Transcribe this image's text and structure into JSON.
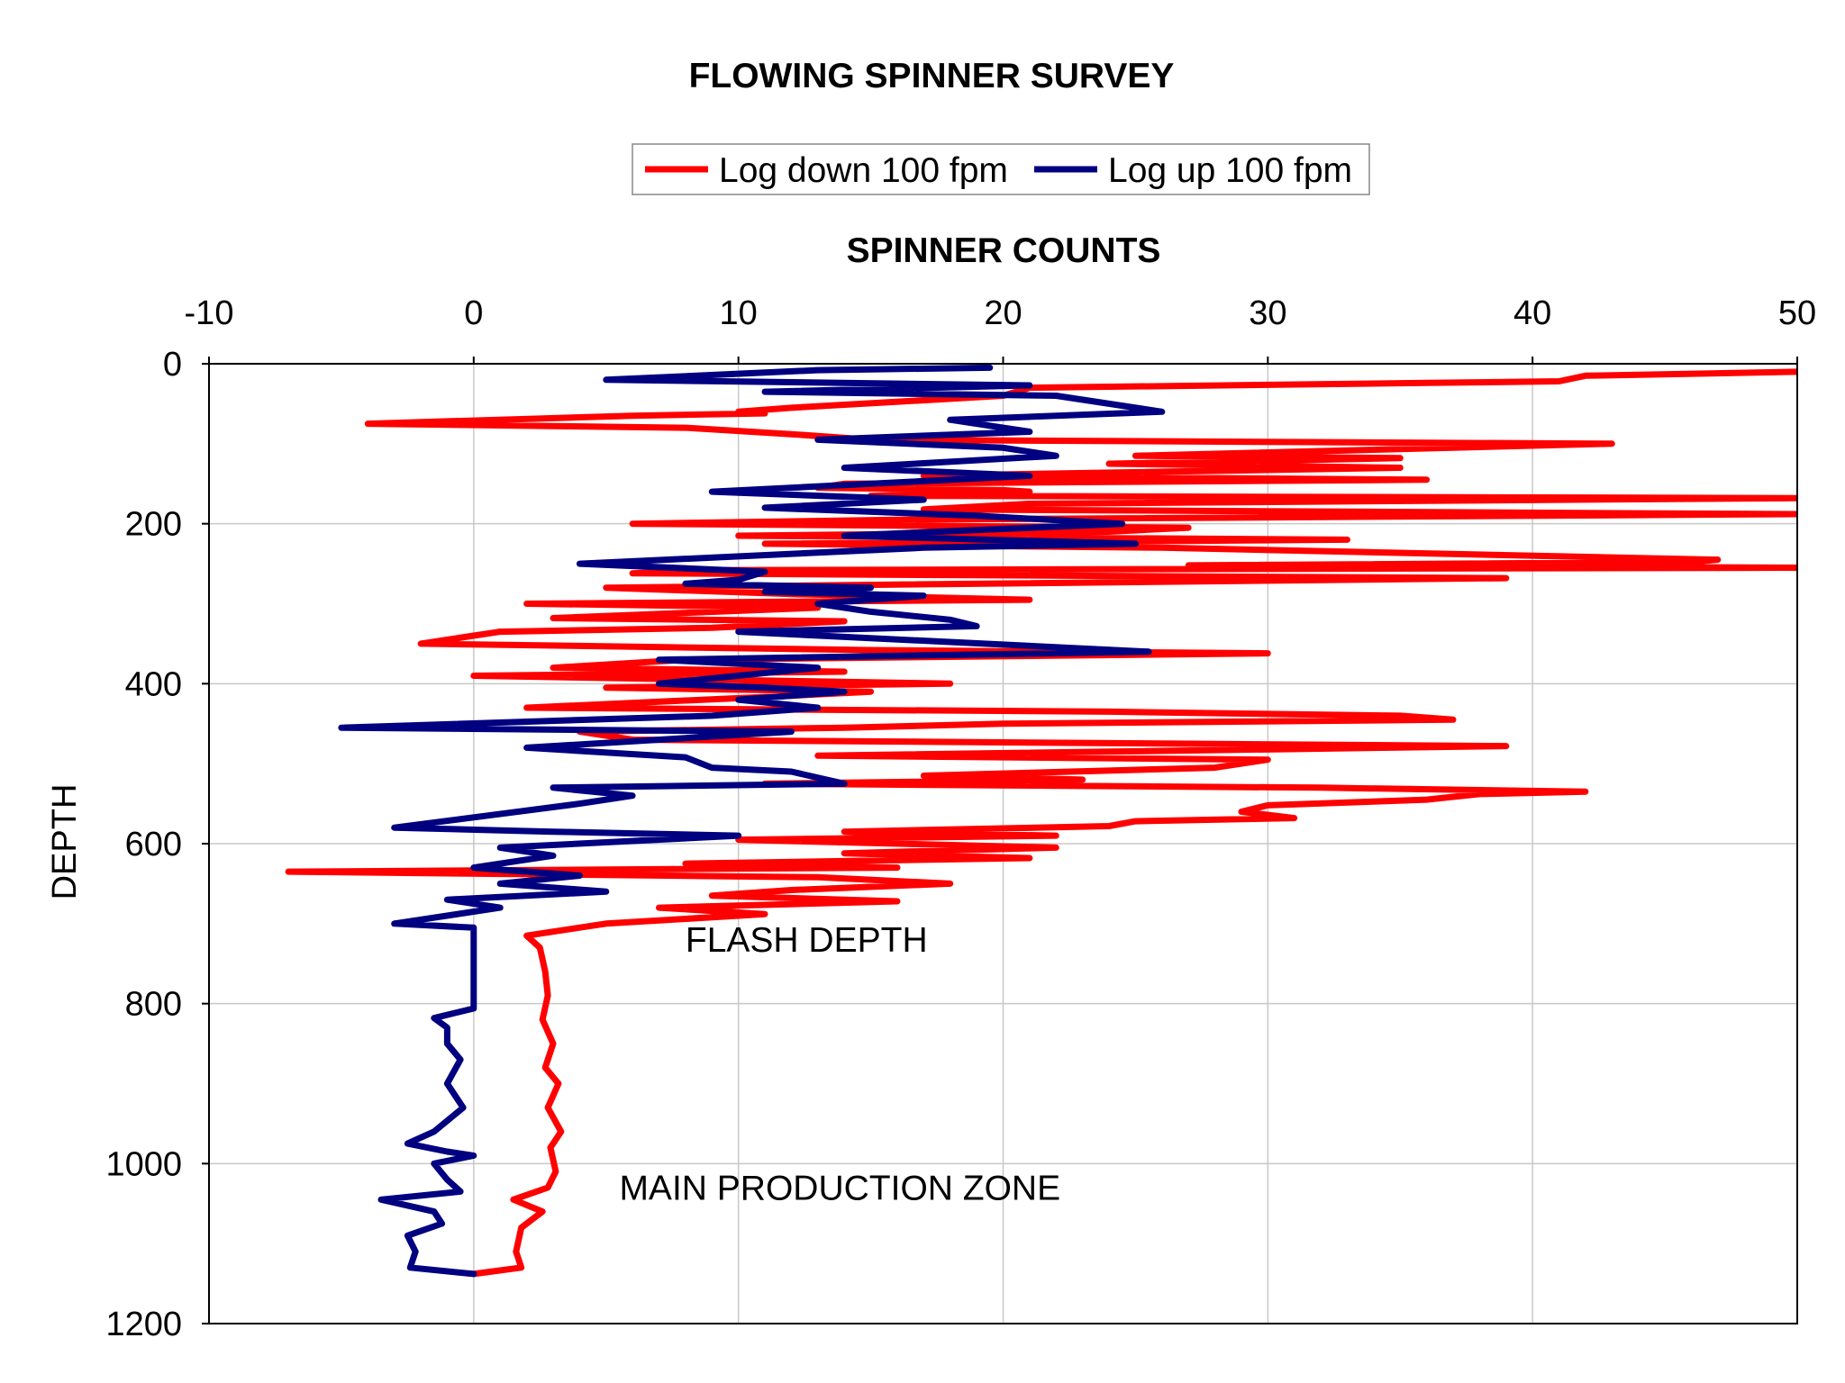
{
  "chart_data": {
    "type": "line",
    "title": "FLOWING SPINNER SURVEY",
    "xlabel": "SPINNER COUNTS",
    "ylabel": "DEPTH",
    "xlim": [
      -10,
      50
    ],
    "ylim": [
      0,
      1200
    ],
    "y_inverted": true,
    "x_ticks": [
      "-10",
      "0",
      "10",
      "20",
      "30",
      "40",
      "50"
    ],
    "y_ticks": [
      "0",
      "200",
      "400",
      "600",
      "800",
      "1000",
      "1200"
    ],
    "grid": true,
    "legend_position": "top",
    "annotations": [
      {
        "text": "FLASH DEPTH",
        "x": 8,
        "y": 735
      },
      {
        "text": "MAIN PRODUCTION ZONE",
        "x": 5.5,
        "y": 1045
      }
    ],
    "series": [
      {
        "name": "Log down 100 fpm",
        "color": "#ff0000",
        "points": [
          [
            50,
            10
          ],
          [
            42,
            15
          ],
          [
            41,
            22
          ],
          [
            36,
            24
          ],
          [
            21,
            30
          ],
          [
            20,
            40
          ],
          [
            12,
            55
          ],
          [
            10,
            60
          ],
          [
            11,
            62
          ],
          [
            6,
            65
          ],
          [
            -4,
            75
          ],
          [
            8,
            80
          ],
          [
            12,
            88
          ],
          [
            15,
            95
          ],
          [
            43,
            100
          ],
          [
            25,
            115
          ],
          [
            35,
            118
          ],
          [
            24,
            125
          ],
          [
            35,
            130
          ],
          [
            17,
            140
          ],
          [
            36,
            145
          ],
          [
            14,
            150
          ],
          [
            13,
            155
          ],
          [
            20,
            158
          ],
          [
            21,
            160
          ],
          [
            15,
            165
          ],
          [
            50,
            168
          ],
          [
            21,
            175
          ],
          [
            17,
            182
          ],
          [
            50,
            188
          ],
          [
            16,
            195
          ],
          [
            6,
            200
          ],
          [
            27,
            205
          ],
          [
            24,
            210
          ],
          [
            10,
            215
          ],
          [
            33,
            220
          ],
          [
            11,
            225
          ],
          [
            26,
            230
          ],
          [
            47,
            245
          ],
          [
            46,
            248
          ],
          [
            27,
            252
          ],
          [
            50,
            255
          ],
          [
            9,
            258
          ],
          [
            6,
            262
          ],
          [
            39,
            268
          ],
          [
            5,
            280
          ],
          [
            12,
            288
          ],
          [
            21,
            295
          ],
          [
            2,
            300
          ],
          [
            13,
            305
          ],
          [
            3,
            318
          ],
          [
            14,
            322
          ],
          [
            9,
            330
          ],
          [
            1,
            335
          ],
          [
            0,
            340
          ],
          [
            -2,
            350
          ],
          [
            15,
            358
          ],
          [
            30,
            362
          ],
          [
            8,
            370
          ],
          [
            3,
            380
          ],
          [
            14,
            385
          ],
          [
            0,
            390
          ],
          [
            18,
            400
          ],
          [
            5,
            405
          ],
          [
            15,
            410
          ],
          [
            12,
            415
          ],
          [
            2,
            430
          ],
          [
            24,
            435
          ],
          [
            35,
            440
          ],
          [
            37,
            445
          ],
          [
            20,
            450
          ],
          [
            14,
            455
          ],
          [
            4,
            460
          ],
          [
            6,
            470
          ],
          [
            39,
            478
          ],
          [
            13,
            490
          ],
          [
            30,
            495
          ],
          [
            28,
            505
          ],
          [
            17,
            515
          ],
          [
            23,
            520
          ],
          [
            11,
            525
          ],
          [
            32,
            530
          ],
          [
            42,
            535
          ],
          [
            38,
            538
          ],
          [
            36,
            545
          ],
          [
            30,
            552
          ],
          [
            29,
            560
          ],
          [
            31,
            568
          ],
          [
            25,
            572
          ],
          [
            24,
            578
          ],
          [
            14,
            585
          ],
          [
            22,
            590
          ],
          [
            10,
            595
          ],
          [
            22,
            605
          ],
          [
            14,
            612
          ],
          [
            21,
            618
          ],
          [
            8,
            625
          ],
          [
            16,
            630
          ],
          [
            -7,
            635
          ],
          [
            13,
            642
          ],
          [
            18,
            650
          ],
          [
            12,
            658
          ],
          [
            9,
            665
          ],
          [
            16,
            672
          ],
          [
            7,
            680
          ],
          [
            11,
            688
          ],
          [
            5,
            700
          ],
          [
            3,
            710
          ],
          [
            2,
            715
          ],
          [
            2.5,
            730
          ],
          [
            2.7,
            760
          ],
          [
            2.8,
            790
          ],
          [
            2.6,
            820
          ],
          [
            3,
            850
          ],
          [
            2.7,
            880
          ],
          [
            3.2,
            900
          ],
          [
            2.8,
            930
          ],
          [
            3.3,
            960
          ],
          [
            2.9,
            980
          ],
          [
            3.1,
            1010
          ],
          [
            2.8,
            1030
          ],
          [
            1.5,
            1045
          ],
          [
            2.6,
            1060
          ],
          [
            1.8,
            1080
          ],
          [
            1.6,
            1110
          ],
          [
            1.8,
            1130
          ],
          [
            0,
            1138
          ]
        ]
      },
      {
        "name": "Log up 100 fpm",
        "color": "#000080",
        "points": [
          [
            19.5,
            5
          ],
          [
            13,
            8
          ],
          [
            5,
            20
          ],
          [
            21,
            27
          ],
          [
            11,
            35
          ],
          [
            22,
            40
          ],
          [
            26,
            60
          ],
          [
            18,
            70
          ],
          [
            21,
            85
          ],
          [
            13,
            95
          ],
          [
            20,
            105
          ],
          [
            22,
            115
          ],
          [
            14,
            130
          ],
          [
            21,
            140
          ],
          [
            9,
            160
          ],
          [
            17,
            170
          ],
          [
            11,
            180
          ],
          [
            19,
            190
          ],
          [
            24.5,
            200
          ],
          [
            14,
            215
          ],
          [
            25,
            225
          ],
          [
            17,
            230
          ],
          [
            4,
            250
          ],
          [
            11,
            260
          ],
          [
            10,
            270
          ],
          [
            8,
            275
          ],
          [
            15,
            280
          ],
          [
            11,
            285
          ],
          [
            17,
            290
          ],
          [
            13,
            300
          ],
          [
            15,
            310
          ],
          [
            18,
            320
          ],
          [
            19,
            328
          ],
          [
            10,
            335
          ],
          [
            25.5,
            360
          ],
          [
            7,
            370
          ],
          [
            13,
            380
          ],
          [
            7,
            400
          ],
          [
            11,
            405
          ],
          [
            14,
            410
          ],
          [
            10,
            420
          ],
          [
            13,
            430
          ],
          [
            9,
            440
          ],
          [
            -5,
            455
          ],
          [
            12,
            460
          ],
          [
            2,
            480
          ],
          [
            8,
            492
          ],
          [
            9,
            505
          ],
          [
            12,
            510
          ],
          [
            14,
            525
          ],
          [
            3,
            530
          ],
          [
            6,
            540
          ],
          [
            4,
            550
          ],
          [
            -3,
            580
          ],
          [
            3,
            585
          ],
          [
            10,
            590
          ],
          [
            1,
            605
          ],
          [
            3,
            615
          ],
          [
            0,
            630
          ],
          [
            4,
            640
          ],
          [
            1,
            650
          ],
          [
            5,
            660
          ],
          [
            -1,
            670
          ],
          [
            1,
            680
          ],
          [
            -3,
            700
          ],
          [
            0,
            705
          ],
          [
            0,
            720
          ],
          [
            0,
            760
          ],
          [
            0,
            790
          ],
          [
            0,
            806
          ],
          [
            -1.5,
            818
          ],
          [
            -1,
            830
          ],
          [
            -1,
            850
          ],
          [
            -0.5,
            870
          ],
          [
            -1,
            900
          ],
          [
            -0.4,
            930
          ],
          [
            -1.5,
            960
          ],
          [
            -2.5,
            975
          ],
          [
            -1,
            985
          ],
          [
            0,
            990
          ],
          [
            -1.5,
            1000
          ],
          [
            -1,
            1020
          ],
          [
            -0.5,
            1035
          ],
          [
            -3.5,
            1045
          ],
          [
            -1.5,
            1060
          ],
          [
            -1.2,
            1075
          ],
          [
            -2.5,
            1090
          ],
          [
            -2.2,
            1110
          ],
          [
            -2.4,
            1130
          ],
          [
            0,
            1138
          ]
        ]
      }
    ]
  }
}
